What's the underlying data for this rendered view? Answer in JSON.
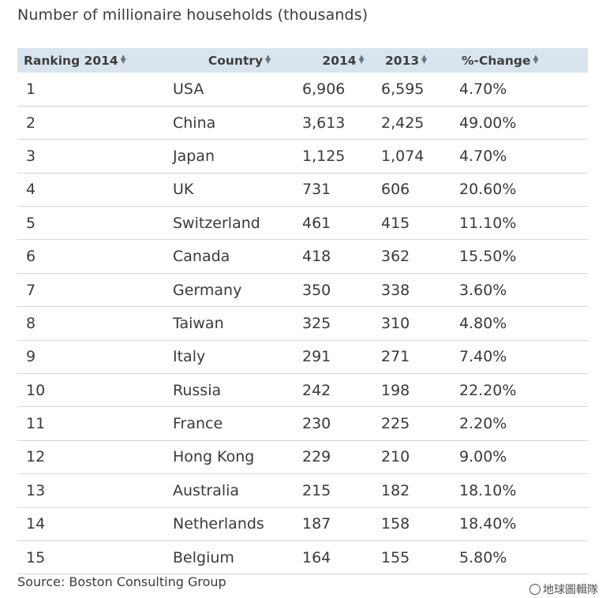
{
  "title": "Number of millionaire households (thousands)",
  "columns": [
    "Ranking 2014",
    "Country",
    "2014",
    "2013",
    "%-Change"
  ],
  "source": "Source: Boston Consulting Group",
  "watermark": "地球圖輯隊",
  "chart_data": {
    "type": "table",
    "title": "Number of millionaire households (thousands)",
    "columns": [
      "Ranking 2014",
      "Country",
      "2014",
      "2013",
      "%-Change"
    ],
    "rows": [
      [
        "1",
        "USA",
        "6,906",
        "6,595",
        "4.70%"
      ],
      [
        "2",
        "China",
        "3,613",
        "2,425",
        "49.00%"
      ],
      [
        "3",
        "Japan",
        "1,125",
        "1,074",
        "4.70%"
      ],
      [
        "4",
        "UK",
        "731",
        "606",
        "20.60%"
      ],
      [
        "5",
        "Switzerland",
        "461",
        "415",
        "11.10%"
      ],
      [
        "6",
        "Canada",
        "418",
        "362",
        "15.50%"
      ],
      [
        "7",
        "Germany",
        "350",
        "338",
        "3.60%"
      ],
      [
        "8",
        "Taiwan",
        "325",
        "310",
        "4.80%"
      ],
      [
        "9",
        "Italy",
        "291",
        "271",
        "7.40%"
      ],
      [
        "10",
        "Russia",
        "242",
        "198",
        "22.20%"
      ],
      [
        "11",
        "France",
        "230",
        "225",
        "2.20%"
      ],
      [
        "12",
        "Hong Kong",
        "229",
        "210",
        "9.00%"
      ],
      [
        "13",
        "Australia",
        "215",
        "182",
        "18.10%"
      ],
      [
        "14",
        "Netherlands",
        "187",
        "158",
        "18.40%"
      ],
      [
        "15",
        "Belgium",
        "164",
        "155",
        "5.80%"
      ]
    ]
  }
}
